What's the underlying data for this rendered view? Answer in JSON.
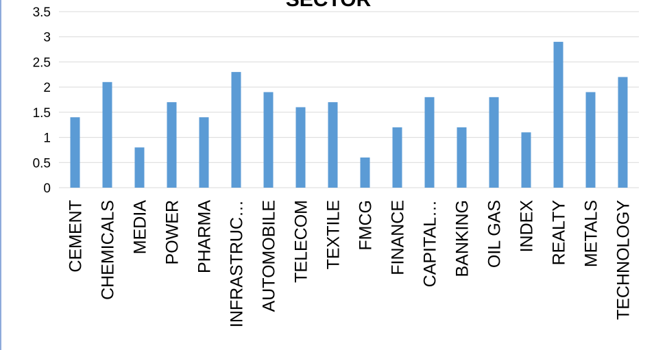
{
  "chart_data": {
    "type": "bar",
    "title": "SECTOR",
    "xlabel": "",
    "ylabel": "",
    "ylim": [
      0,
      3.5
    ],
    "yticks": [
      "0",
      "0.5",
      "1",
      "1.5",
      "2",
      "2.5",
      "3",
      "3.5"
    ],
    "grid": true,
    "legend": "none",
    "categories": [
      "CEMENT",
      "CHEMICALS",
      "MEDIA",
      "POWER",
      "PHARMA",
      "INFRASTRUC…",
      "AUTOMOBILE",
      "TELECOM",
      "TEXTILE",
      "FMCG",
      "FINANCE",
      "CAPITAL…",
      "BANKING",
      "OIL GAS",
      "INDEX",
      "REALTY",
      "METALS",
      "TECHNOLOGY"
    ],
    "values": [
      1.4,
      2.1,
      0.8,
      1.7,
      1.4,
      2.3,
      1.9,
      1.6,
      1.7,
      0.6,
      1.2,
      1.8,
      1.2,
      1.8,
      1.1,
      2.9,
      1.9,
      2.2
    ],
    "colors": {
      "bar": "#5b9bd5",
      "grid": "#d9d9d9",
      "frame": "#8eaadb"
    }
  }
}
